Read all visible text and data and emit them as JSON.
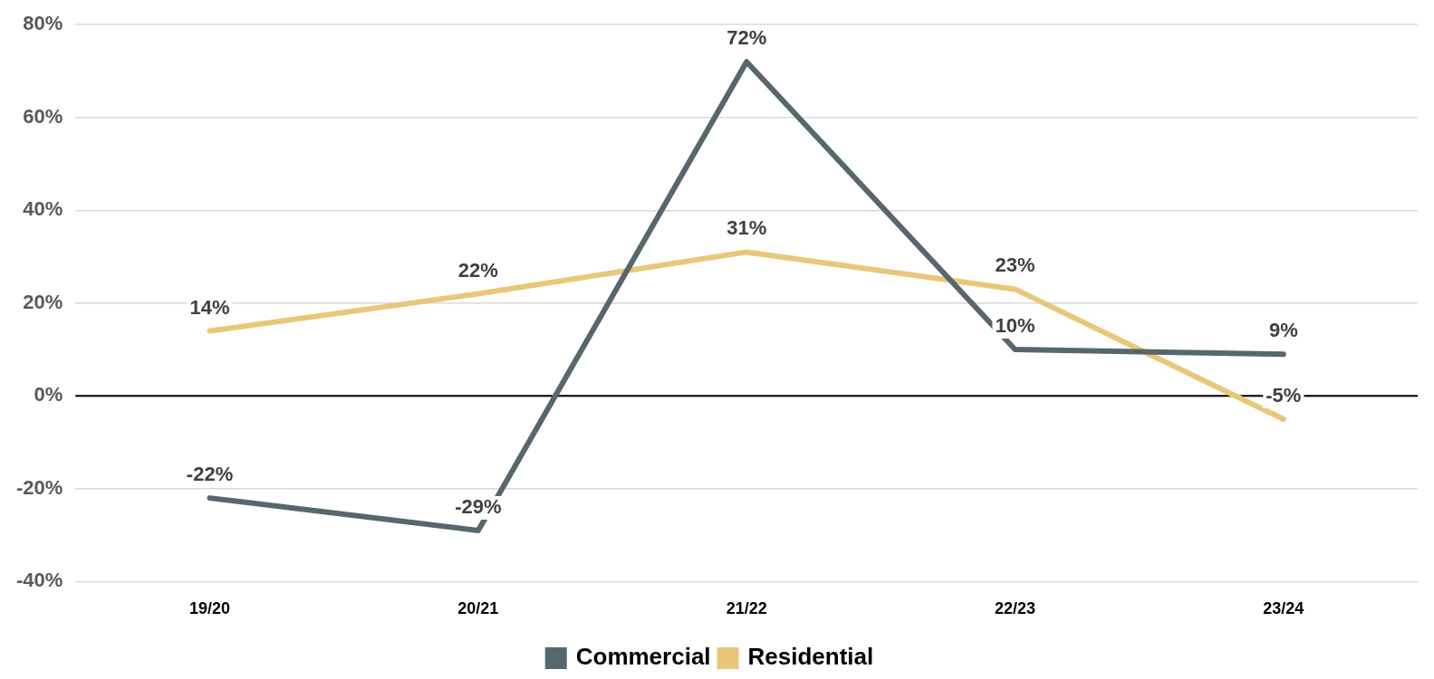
{
  "chart_data": {
    "type": "line",
    "categories": [
      "19/20",
      "20/21",
      "21/22",
      "22/23",
      "23/24"
    ],
    "series": [
      {
        "name": "Commercial",
        "color": "#56676d",
        "values": [
          -22,
          -29,
          72,
          10,
          9
        ],
        "value_labels": [
          "-22%",
          "-29%",
          "72%",
          "10%",
          "9%"
        ]
      },
      {
        "name": "Residential",
        "color": "#e9c77a",
        "values": [
          14,
          22,
          31,
          23,
          -5
        ],
        "value_labels": [
          "14%",
          "22%",
          "31%",
          "23%",
          "-5%"
        ]
      }
    ],
    "ylim": [
      -40,
      80
    ],
    "yticks": [
      {
        "value": -40,
        "label": "-40%"
      },
      {
        "value": -20,
        "label": "-20%"
      },
      {
        "value": 0,
        "label": "0%"
      },
      {
        "value": 20,
        "label": "20%"
      },
      {
        "value": 40,
        "label": "40%"
      },
      {
        "value": 60,
        "label": "60%"
      },
      {
        "value": 80,
        "label": "80%"
      }
    ],
    "ref_lines": [
      {
        "axis": "y",
        "value": 0,
        "color": "#000000"
      }
    ],
    "grid": "y",
    "legend": "bottom",
    "marker": "none",
    "line_style": "solid"
  }
}
